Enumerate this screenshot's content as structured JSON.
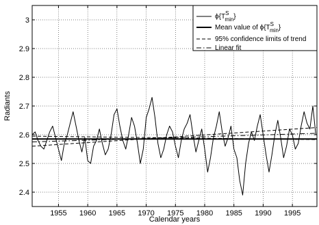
{
  "chart_data": {
    "type": "line",
    "title": "",
    "xlabel": "Calendar years",
    "ylabel": "Radiants",
    "xlim": [
      1950.5,
      1999.2
    ],
    "ylim": [
      2.35,
      3.05
    ],
    "grid": true,
    "grid_style": "dotted",
    "legend_position": "top-right",
    "xticks": [
      1955,
      1960,
      1965,
      1970,
      1975,
      1980,
      1985,
      1990,
      1995
    ],
    "xtick_labels": [
      "1955",
      "1960",
      "1965",
      "1970",
      "1975",
      "1980",
      "1985",
      "1990",
      "1995"
    ],
    "yticks": [
      2.4,
      2.5,
      2.6,
      2.7,
      2.8,
      2.9,
      3.0
    ],
    "ytick_labels": [
      "2.4",
      "2.5",
      "2.6",
      "2.7",
      "2.8",
      "2.9",
      "3"
    ],
    "legend": [
      {
        "label_main": "ϕ{T",
        "label_sup": "S",
        "label_sub": "min",
        "label_end": "}",
        "style": "solid-thin"
      },
      {
        "label_main": "Mean value of ϕ{T",
        "label_sup": "S",
        "label_sub": "min",
        "label_end": "}",
        "style": "solid-thick"
      },
      {
        "label": "95% confidence limits of trend",
        "style": "dashed"
      },
      {
        "label": "Linear fit",
        "style": "dashdot"
      }
    ],
    "series": [
      {
        "style": "solid-thin",
        "x": [
          1950.5,
          1951.0,
          1951.5,
          1952.0,
          1952.5,
          1953.0,
          1953.5,
          1954.0,
          1954.5,
          1955.0,
          1955.5,
          1956.0,
          1956.5,
          1957.0,
          1957.5,
          1958.0,
          1958.5,
          1959.0,
          1959.5,
          1960.0,
          1960.5,
          1961.0,
          1961.5,
          1962.0,
          1962.5,
          1963.0,
          1963.5,
          1964.0,
          1964.5,
          1965.0,
          1965.5,
          1966.0,
          1966.5,
          1967.0,
          1967.5,
          1968.0,
          1968.5,
          1969.0,
          1969.5,
          1970.0,
          1970.5,
          1971.0,
          1971.5,
          1972.0,
          1972.5,
          1973.0,
          1973.5,
          1974.0,
          1974.5,
          1975.0,
          1975.5,
          1976.0,
          1976.5,
          1977.0,
          1977.5,
          1978.0,
          1978.5,
          1979.0,
          1979.5,
          1980.0,
          1980.5,
          1981.0,
          1981.5,
          1982.0,
          1982.5,
          1983.0,
          1983.5,
          1984.0,
          1984.5,
          1985.0,
          1985.5,
          1986.0,
          1986.5,
          1987.0,
          1987.5,
          1988.0,
          1988.5,
          1989.0,
          1989.5,
          1990.0,
          1990.5,
          1991.0,
          1991.5,
          1992.0,
          1992.5,
          1993.0,
          1993.5,
          1994.0,
          1994.5,
          1995.0,
          1995.5,
          1996.0,
          1996.5,
          1997.0,
          1997.5,
          1998.0,
          1998.5,
          1999.0
        ],
        "values": [
          2.6,
          2.61,
          2.58,
          2.56,
          2.55,
          2.58,
          2.61,
          2.63,
          2.59,
          2.55,
          2.51,
          2.57,
          2.6,
          2.64,
          2.68,
          2.63,
          2.58,
          2.54,
          2.59,
          2.51,
          2.5,
          2.56,
          2.58,
          2.62,
          2.57,
          2.53,
          2.55,
          2.6,
          2.67,
          2.69,
          2.63,
          2.58,
          2.55,
          2.6,
          2.66,
          2.63,
          2.57,
          2.5,
          2.55,
          2.66,
          2.69,
          2.73,
          2.66,
          2.57,
          2.52,
          2.55,
          2.6,
          2.63,
          2.61,
          2.56,
          2.52,
          2.58,
          2.62,
          2.64,
          2.67,
          2.6,
          2.54,
          2.58,
          2.62,
          2.55,
          2.47,
          2.52,
          2.59,
          2.63,
          2.68,
          2.61,
          2.56,
          2.59,
          2.63,
          2.55,
          2.52,
          2.44,
          2.39,
          2.5,
          2.57,
          2.61,
          2.58,
          2.63,
          2.67,
          2.6,
          2.53,
          2.47,
          2.53,
          2.6,
          2.65,
          2.59,
          2.52,
          2.56,
          2.62,
          2.6,
          2.55,
          2.57,
          2.63,
          2.68,
          2.64,
          2.62,
          2.7,
          2.6
        ]
      },
      {
        "style": "solid-thick",
        "x": [
          1950.5,
          1999.2
        ],
        "values": [
          2.585,
          2.585
        ]
      },
      {
        "style": "dashed",
        "x": [
          1950.5,
          1999.2
        ],
        "values": [
          2.56,
          2.625
        ]
      },
      {
        "style": "dashed",
        "x": [
          1950.5,
          1999.2
        ],
        "values": [
          2.595,
          2.583
        ]
      },
      {
        "style": "dashdot",
        "x": [
          1950.5,
          1999.2
        ],
        "values": [
          2.575,
          2.605
        ]
      }
    ]
  }
}
